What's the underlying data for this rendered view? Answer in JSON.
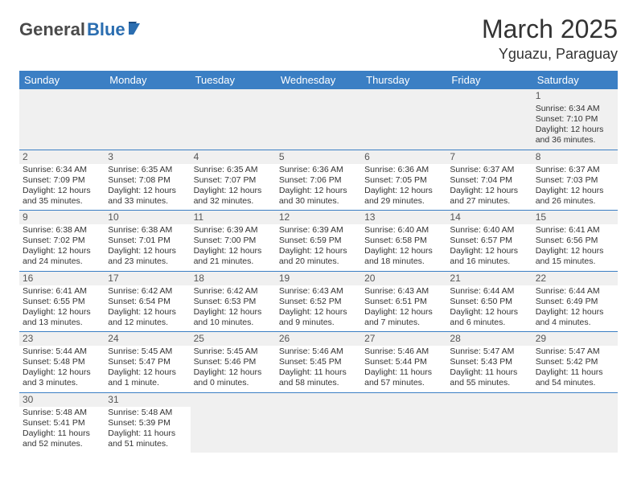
{
  "brand": {
    "part1": "General",
    "part2": "Blue"
  },
  "title": "March 2025",
  "location": "Yguazu, Paraguay",
  "colors": {
    "header_bg": "#3b7fc4",
    "header_text": "#ffffff",
    "row_separator": "#3b7fc4",
    "daynum_bg": "#f0f0f0",
    "logo_general": "#4a4a4a",
    "logo_blue": "#2a6db0",
    "body_bg": "#ffffff"
  },
  "typography": {
    "month_title_fontsize": 32,
    "location_fontsize": 18,
    "weekday_fontsize": 13,
    "cell_fontsize": 10.5,
    "daynum_fontsize": 12
  },
  "weekdays": [
    "Sunday",
    "Monday",
    "Tuesday",
    "Wednesday",
    "Thursday",
    "Friday",
    "Saturday"
  ],
  "weeks": [
    [
      null,
      null,
      null,
      null,
      null,
      null,
      {
        "n": "1",
        "sr": "Sunrise: 6:34 AM",
        "ss": "Sunset: 7:10 PM",
        "d1": "Daylight: 12 hours",
        "d2": "and 36 minutes."
      }
    ],
    [
      {
        "n": "2",
        "sr": "Sunrise: 6:34 AM",
        "ss": "Sunset: 7:09 PM",
        "d1": "Daylight: 12 hours",
        "d2": "and 35 minutes."
      },
      {
        "n": "3",
        "sr": "Sunrise: 6:35 AM",
        "ss": "Sunset: 7:08 PM",
        "d1": "Daylight: 12 hours",
        "d2": "and 33 minutes."
      },
      {
        "n": "4",
        "sr": "Sunrise: 6:35 AM",
        "ss": "Sunset: 7:07 PM",
        "d1": "Daylight: 12 hours",
        "d2": "and 32 minutes."
      },
      {
        "n": "5",
        "sr": "Sunrise: 6:36 AM",
        "ss": "Sunset: 7:06 PM",
        "d1": "Daylight: 12 hours",
        "d2": "and 30 minutes."
      },
      {
        "n": "6",
        "sr": "Sunrise: 6:36 AM",
        "ss": "Sunset: 7:05 PM",
        "d1": "Daylight: 12 hours",
        "d2": "and 29 minutes."
      },
      {
        "n": "7",
        "sr": "Sunrise: 6:37 AM",
        "ss": "Sunset: 7:04 PM",
        "d1": "Daylight: 12 hours",
        "d2": "and 27 minutes."
      },
      {
        "n": "8",
        "sr": "Sunrise: 6:37 AM",
        "ss": "Sunset: 7:03 PM",
        "d1": "Daylight: 12 hours",
        "d2": "and 26 minutes."
      }
    ],
    [
      {
        "n": "9",
        "sr": "Sunrise: 6:38 AM",
        "ss": "Sunset: 7:02 PM",
        "d1": "Daylight: 12 hours",
        "d2": "and 24 minutes."
      },
      {
        "n": "10",
        "sr": "Sunrise: 6:38 AM",
        "ss": "Sunset: 7:01 PM",
        "d1": "Daylight: 12 hours",
        "d2": "and 23 minutes."
      },
      {
        "n": "11",
        "sr": "Sunrise: 6:39 AM",
        "ss": "Sunset: 7:00 PM",
        "d1": "Daylight: 12 hours",
        "d2": "and 21 minutes."
      },
      {
        "n": "12",
        "sr": "Sunrise: 6:39 AM",
        "ss": "Sunset: 6:59 PM",
        "d1": "Daylight: 12 hours",
        "d2": "and 20 minutes."
      },
      {
        "n": "13",
        "sr": "Sunrise: 6:40 AM",
        "ss": "Sunset: 6:58 PM",
        "d1": "Daylight: 12 hours",
        "d2": "and 18 minutes."
      },
      {
        "n": "14",
        "sr": "Sunrise: 6:40 AM",
        "ss": "Sunset: 6:57 PM",
        "d1": "Daylight: 12 hours",
        "d2": "and 16 minutes."
      },
      {
        "n": "15",
        "sr": "Sunrise: 6:41 AM",
        "ss": "Sunset: 6:56 PM",
        "d1": "Daylight: 12 hours",
        "d2": "and 15 minutes."
      }
    ],
    [
      {
        "n": "16",
        "sr": "Sunrise: 6:41 AM",
        "ss": "Sunset: 6:55 PM",
        "d1": "Daylight: 12 hours",
        "d2": "and 13 minutes."
      },
      {
        "n": "17",
        "sr": "Sunrise: 6:42 AM",
        "ss": "Sunset: 6:54 PM",
        "d1": "Daylight: 12 hours",
        "d2": "and 12 minutes."
      },
      {
        "n": "18",
        "sr": "Sunrise: 6:42 AM",
        "ss": "Sunset: 6:53 PM",
        "d1": "Daylight: 12 hours",
        "d2": "and 10 minutes."
      },
      {
        "n": "19",
        "sr": "Sunrise: 6:43 AM",
        "ss": "Sunset: 6:52 PM",
        "d1": "Daylight: 12 hours",
        "d2": "and 9 minutes."
      },
      {
        "n": "20",
        "sr": "Sunrise: 6:43 AM",
        "ss": "Sunset: 6:51 PM",
        "d1": "Daylight: 12 hours",
        "d2": "and 7 minutes."
      },
      {
        "n": "21",
        "sr": "Sunrise: 6:44 AM",
        "ss": "Sunset: 6:50 PM",
        "d1": "Daylight: 12 hours",
        "d2": "and 6 minutes."
      },
      {
        "n": "22",
        "sr": "Sunrise: 6:44 AM",
        "ss": "Sunset: 6:49 PM",
        "d1": "Daylight: 12 hours",
        "d2": "and 4 minutes."
      }
    ],
    [
      {
        "n": "23",
        "sr": "Sunrise: 5:44 AM",
        "ss": "Sunset: 5:48 PM",
        "d1": "Daylight: 12 hours",
        "d2": "and 3 minutes."
      },
      {
        "n": "24",
        "sr": "Sunrise: 5:45 AM",
        "ss": "Sunset: 5:47 PM",
        "d1": "Daylight: 12 hours",
        "d2": "and 1 minute."
      },
      {
        "n": "25",
        "sr": "Sunrise: 5:45 AM",
        "ss": "Sunset: 5:46 PM",
        "d1": "Daylight: 12 hours",
        "d2": "and 0 minutes."
      },
      {
        "n": "26",
        "sr": "Sunrise: 5:46 AM",
        "ss": "Sunset: 5:45 PM",
        "d1": "Daylight: 11 hours",
        "d2": "and 58 minutes."
      },
      {
        "n": "27",
        "sr": "Sunrise: 5:46 AM",
        "ss": "Sunset: 5:44 PM",
        "d1": "Daylight: 11 hours",
        "d2": "and 57 minutes."
      },
      {
        "n": "28",
        "sr": "Sunrise: 5:47 AM",
        "ss": "Sunset: 5:43 PM",
        "d1": "Daylight: 11 hours",
        "d2": "and 55 minutes."
      },
      {
        "n": "29",
        "sr": "Sunrise: 5:47 AM",
        "ss": "Sunset: 5:42 PM",
        "d1": "Daylight: 11 hours",
        "d2": "and 54 minutes."
      }
    ],
    [
      {
        "n": "30",
        "sr": "Sunrise: 5:48 AM",
        "ss": "Sunset: 5:41 PM",
        "d1": "Daylight: 11 hours",
        "d2": "and 52 minutes."
      },
      {
        "n": "31",
        "sr": "Sunrise: 5:48 AM",
        "ss": "Sunset: 5:39 PM",
        "d1": "Daylight: 11 hours",
        "d2": "and 51 minutes."
      },
      null,
      null,
      null,
      null,
      null
    ]
  ]
}
